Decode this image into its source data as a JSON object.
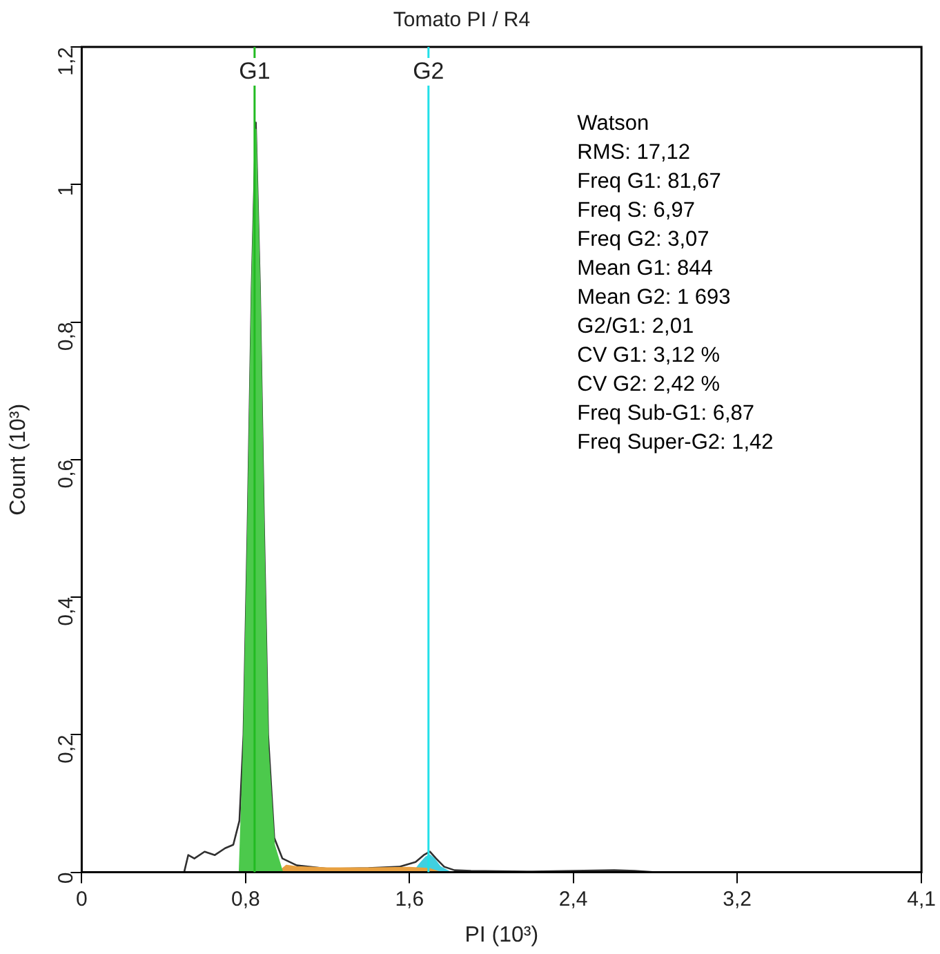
{
  "chart_data": {
    "type": "line",
    "title": "Tomato PI / R4",
    "xlabel": "PI (10³)",
    "ylabel": "Count (10³)",
    "xlim": [
      0,
      4.1
    ],
    "xticks": [
      0,
      {
        "value": 0.8,
        "label": "0,8"
      },
      {
        "value": 1.6,
        "label": "1,6"
      },
      {
        "value": 2.4,
        "label": "2,4"
      },
      {
        "value": 3.2,
        "label": "3,2"
      },
      {
        "value": 4.1,
        "label": "4,1"
      }
    ],
    "ylim": [
      0,
      1.2
    ],
    "yticks": [
      0,
      {
        "value": 0.2,
        "label": "0,2"
      },
      {
        "value": 0.4,
        "label": "0,4"
      },
      {
        "value": 0.6,
        "label": "0,6"
      },
      {
        "value": 0.8,
        "label": "0,8"
      },
      {
        "value": 1,
        "label": "1"
      },
      {
        "value": 1.2,
        "label": "1,2"
      }
    ],
    "grid": false,
    "legend": false,
    "marker": "none",
    "series": [
      {
        "type": "area",
        "color": "#4cc94c",
        "x": [
          0.77,
          0.79,
          0.81,
          0.83,
          0.85,
          0.87,
          0.89,
          0.91,
          0.94,
          0.98
        ],
        "values": [
          0,
          0.18,
          0.48,
          0.84,
          1.08,
          0.84,
          0.48,
          0.18,
          0.04,
          0
        ]
      },
      {
        "type": "area",
        "color": "#e8a040",
        "x": [
          0.96,
          1.0,
          1.05,
          1.2,
          1.4,
          1.6,
          1.7,
          1.75
        ],
        "values": [
          0,
          0.01,
          0.008,
          0.006,
          0.006,
          0.007,
          0.005,
          0
        ]
      },
      {
        "type": "area",
        "color": "#40d0e0",
        "x": [
          1.62,
          1.65,
          1.68,
          1.7,
          1.72,
          1.75,
          1.8
        ],
        "values": [
          0,
          0.012,
          0.022,
          0.025,
          0.02,
          0.008,
          0
        ]
      },
      {
        "color": "#303030",
        "x": [
          0.5,
          0.52,
          0.55,
          0.6,
          0.65,
          0.7,
          0.74,
          0.77,
          0.79,
          0.81,
          0.83,
          0.85,
          0.87,
          0.89,
          0.91,
          0.94,
          0.98,
          1.05,
          1.2,
          1.4,
          1.55,
          1.63,
          1.67,
          1.7,
          1.73,
          1.77,
          1.82,
          1.9,
          2.2,
          2.6,
          2.7,
          2.8
        ],
        "values": [
          0,
          0.025,
          0.02,
          0.03,
          0.025,
          0.035,
          0.04,
          0.075,
          0.2,
          0.5,
          0.85,
          1.09,
          0.85,
          0.5,
          0.2,
          0.05,
          0.02,
          0.01,
          0.005,
          0.006,
          0.008,
          0.015,
          0.025,
          0.03,
          0.02,
          0.008,
          0.003,
          0.002,
          0.001,
          0.003,
          0.002,
          0
        ]
      }
    ],
    "ref_lines": [
      {
        "axis": "x",
        "value": 0.844,
        "label": "G1",
        "color": "#22bb22"
      },
      {
        "axis": "x",
        "value": 1.693,
        "label": "G2",
        "color": "#22e0e8"
      }
    ],
    "annotations": [
      "Watson",
      "RMS: 17,12",
      "Freq G1: 81,67",
      "Freq S: 6,97",
      "Freq G2: 3,07",
      "Mean G1: 844",
      "Mean G2: 1 693",
      "G2/G1: 2,01",
      "CV G1: 3,12 %",
      "CV G2: 2,42 %",
      "Freq Sub-G1: 6,87",
      "Freq Super-G2: 1,42"
    ]
  }
}
